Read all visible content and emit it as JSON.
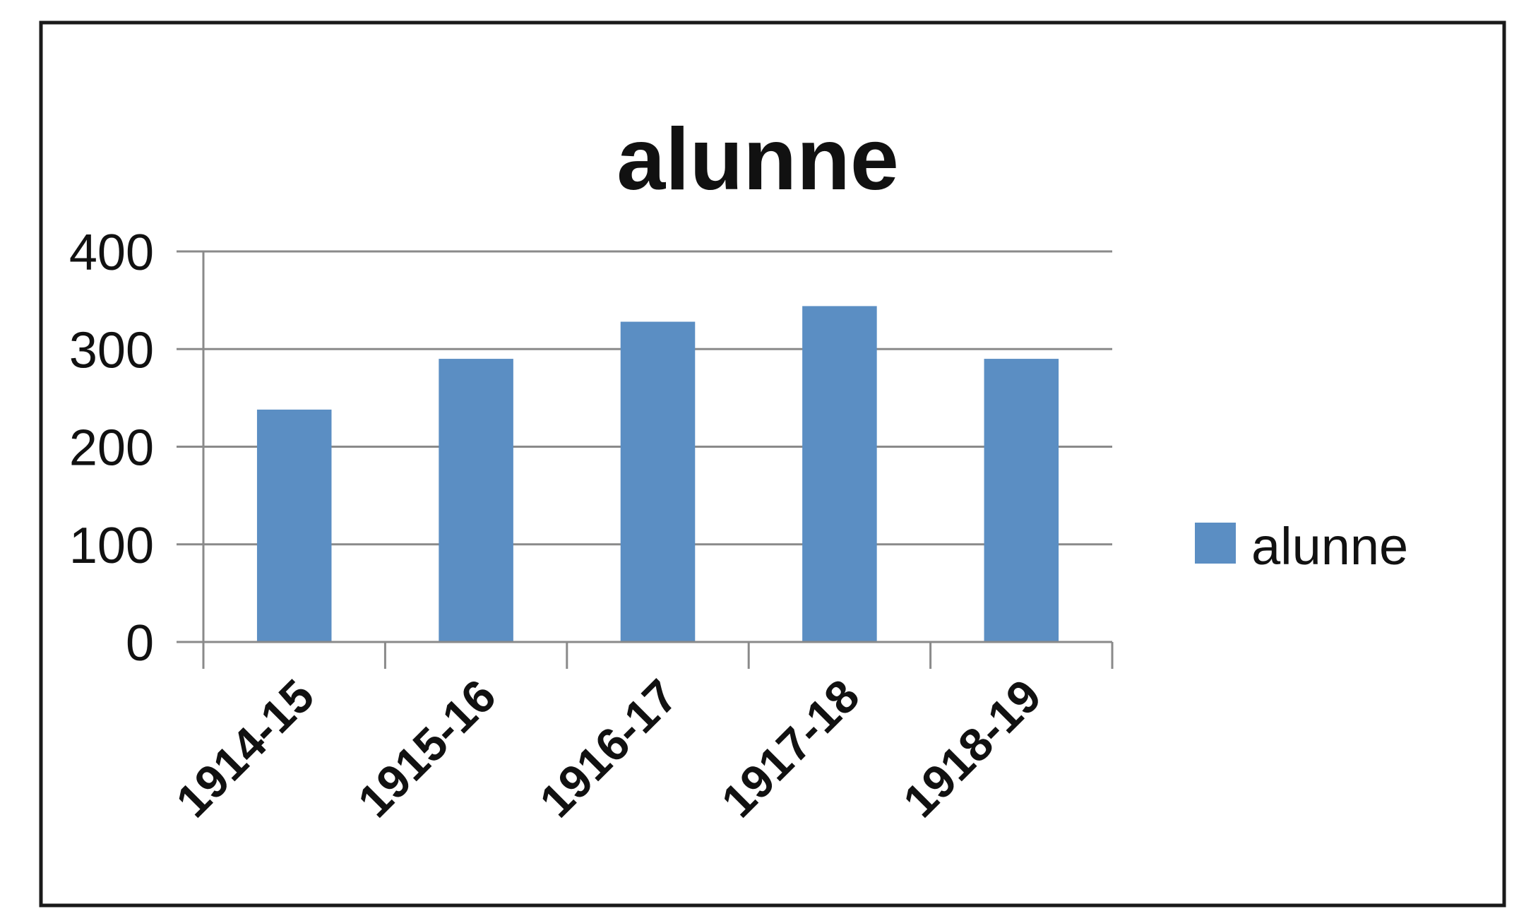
{
  "chart_data": {
    "type": "bar",
    "title": "alunne",
    "xlabel": "",
    "ylabel": "",
    "categories": [
      "1914-15",
      "1915-16",
      "1916-17",
      "1917-18",
      "1918-19"
    ],
    "series": [
      {
        "name": "alunne",
        "values": [
          238,
          290,
          328,
          344,
          290
        ],
        "color": "#5b8ec3"
      }
    ],
    "ylim": [
      0,
      400
    ],
    "yticks": [
      "0",
      "100",
      "200",
      "300",
      "400"
    ],
    "grid": true,
    "legend_position": "right"
  }
}
